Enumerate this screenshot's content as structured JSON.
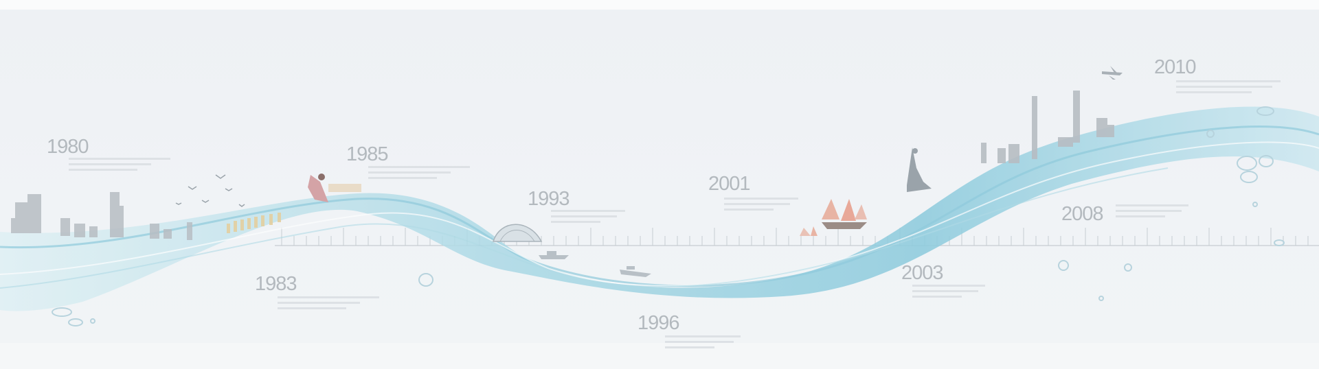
{
  "timeline": {
    "years": [
      "1980",
      "1983",
      "1985",
      "1993",
      "1996",
      "2001",
      "2003",
      "2008",
      "2010"
    ]
  },
  "colors": {
    "water_light": "#cfe9f0",
    "water_mid": "#9fd3e1",
    "water_deep": "#6fb8cf",
    "year_text": "#b3b9be",
    "placeholder_line": "#dde1e5",
    "skyline": "#b7bdc3",
    "sail": "#e8b4a4"
  }
}
